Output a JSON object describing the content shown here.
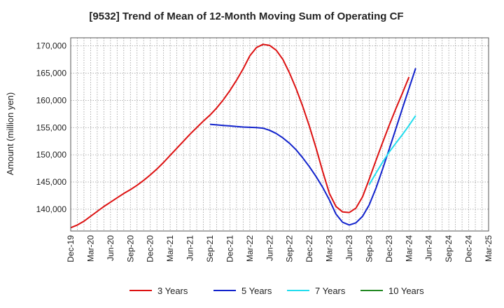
{
  "chart_data": {
    "type": "line",
    "title": "[9532]  Trend of Mean of 12-Month Moving Sum of Operating CF",
    "xlabel": "",
    "ylabel": "Amount (million yen)",
    "ylim": [
      136000,
      171500
    ],
    "yticks": [
      140000,
      145000,
      150000,
      155000,
      160000,
      165000,
      170000
    ],
    "ytick_labels": [
      "140,000",
      "145,000",
      "150,000",
      "155,000",
      "160,000",
      "165,000",
      "170,000"
    ],
    "x_start": "Dec-19",
    "x_end": "Mar-25",
    "xtick_labels": [
      "Dec-19",
      "Mar-20",
      "Jun-20",
      "Sep-20",
      "Dec-20",
      "Mar-21",
      "Jun-21",
      "Sep-21",
      "Dec-21",
      "Mar-22",
      "Jun-22",
      "Sep-22",
      "Dec-22",
      "Mar-23",
      "Jun-23",
      "Sep-23",
      "Dec-23",
      "Mar-24",
      "Jun-24",
      "Sep-24",
      "Dec-24",
      "Mar-25"
    ],
    "grid": true,
    "legend_position": "bottom",
    "series": [
      {
        "name": "3 Years",
        "color": "#dd1111",
        "start_index": 0,
        "values": [
          136600,
          137100,
          137800,
          138700,
          139600,
          140500,
          141300,
          142100,
          142900,
          143600,
          144400,
          145300,
          146300,
          147400,
          148600,
          149900,
          151200,
          152500,
          153800,
          155000,
          156200,
          157300,
          158600,
          160100,
          161800,
          163700,
          165800,
          168200,
          169700,
          170300,
          170100,
          169200,
          167500,
          165000,
          162100,
          158800,
          155200,
          151200,
          146900,
          142900,
          140500,
          139500,
          139400,
          140200,
          142300,
          145500,
          148900,
          152200,
          155400,
          158400,
          161300,
          164300
        ]
      },
      {
        "name": "5 Years",
        "color": "#1122cc",
        "start_index": 21,
        "values": [
          155600,
          155500,
          155400,
          155300,
          155200,
          155100,
          155050,
          155000,
          154900,
          154500,
          153900,
          153100,
          152100,
          150900,
          149400,
          147800,
          146000,
          144000,
          141700,
          139100,
          137600,
          137100,
          137500,
          138700,
          140800,
          143800,
          147300,
          151000,
          154700,
          158500,
          162200,
          165900
        ]
      },
      {
        "name": "7 Years",
        "color": "#22ddee",
        "start_index": 45,
        "values": [
          144500,
          146600,
          148600,
          150500,
          152100,
          153700,
          155400,
          157200
        ]
      },
      {
        "name": "10 Years",
        "color": "#228822",
        "start_index": 0,
        "values": []
      }
    ]
  }
}
